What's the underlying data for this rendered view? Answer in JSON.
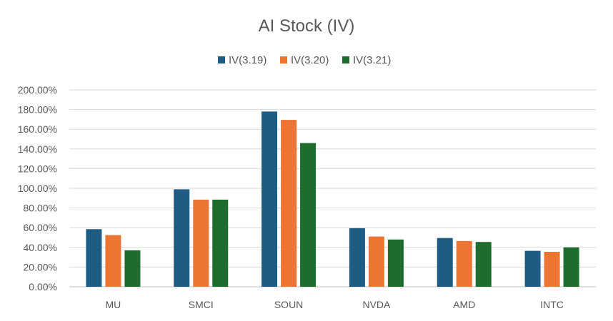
{
  "chart_data": {
    "type": "bar",
    "title": "AI Stock (IV)",
    "categories": [
      "MU",
      "SMCI",
      "SOUN",
      "NVDA",
      "AMD",
      "INTC"
    ],
    "series": [
      {
        "name": "IV(3.19)",
        "color": "#1f5c84",
        "values": [
          58.5,
          99,
          178,
          59.5,
          49.5,
          36.5
        ]
      },
      {
        "name": "IV(3.20)",
        "color": "#ed7534",
        "values": [
          52.5,
          88.5,
          169.5,
          51,
          46.5,
          35.5
        ]
      },
      {
        "name": "IV(3.21)",
        "color": "#1e6d2f",
        "values": [
          37,
          88.5,
          146,
          48,
          45.5,
          40
        ]
      }
    ],
    "ylim": [
      0,
      200
    ],
    "yticks": [
      0,
      20,
      40,
      60,
      80,
      100,
      120,
      140,
      160,
      180,
      200
    ],
    "ytick_labels": [
      "0.00%",
      "20.00%",
      "40.00%",
      "60.00%",
      "80.00%",
      "100.00%",
      "120.00%",
      "140.00%",
      "160.00%",
      "180.00%",
      "200.00%"
    ],
    "grid": true,
    "legend_position": "top-center"
  }
}
